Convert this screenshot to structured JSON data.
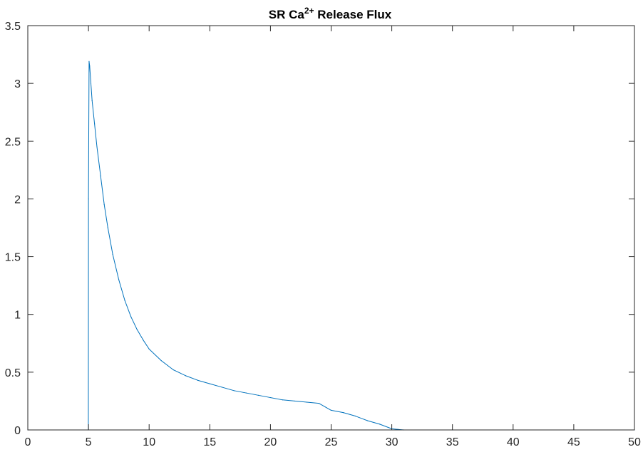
{
  "chart_data": {
    "type": "line",
    "title": "SR Ca",
    "title_superscript": "2+",
    "title_suffix": " Release Flux",
    "xlabel": "",
    "ylabel": "",
    "xlim": [
      0,
      50
    ],
    "ylim": [
      0,
      3.5
    ],
    "x_ticks": [
      0,
      5,
      10,
      15,
      20,
      25,
      30,
      35,
      40,
      45,
      50
    ],
    "x_tick_labels": [
      "0",
      "5",
      "10",
      "15",
      "20",
      "25",
      "30",
      "35",
      "40",
      "45",
      "50"
    ],
    "y_ticks": [
      0,
      0.5,
      1,
      1.5,
      2,
      2.5,
      3,
      3.5
    ],
    "y_tick_labels": [
      "0",
      "0.5",
      "1",
      "1.5",
      "2",
      "2.5",
      "3",
      "3.5"
    ],
    "grid": false,
    "series": [
      {
        "color": "#0072BD",
        "x": [
          0,
          4.99,
          5.0,
          5.05,
          5.1,
          5.2,
          5.3,
          5.5,
          5.7,
          6.0,
          6.3,
          6.6,
          7.0,
          7.5,
          8.0,
          8.5,
          9.0,
          9.5,
          10.0,
          11.0,
          12.0,
          13.0,
          14.0,
          15.0,
          16.0,
          17.0,
          18.0,
          19.0,
          20.0,
          21.0,
          22.0,
          23.0,
          24.0,
          24.5,
          25.0,
          26.0,
          27.0,
          28.0,
          29.0,
          30.0,
          30.5,
          31.0,
          35.0,
          40.0,
          45.0,
          50.0
        ],
        "y": [
          0,
          0,
          2.0,
          3.19,
          3.15,
          3.0,
          2.85,
          2.65,
          2.45,
          2.2,
          1.95,
          1.75,
          1.52,
          1.3,
          1.12,
          0.98,
          0.87,
          0.78,
          0.7,
          0.6,
          0.52,
          0.47,
          0.43,
          0.4,
          0.37,
          0.34,
          0.32,
          0.3,
          0.28,
          0.26,
          0.25,
          0.24,
          0.23,
          0.2,
          0.17,
          0.15,
          0.12,
          0.08,
          0.05,
          0.01,
          0.005,
          0,
          0,
          0,
          0,
          0
        ]
      }
    ]
  }
}
